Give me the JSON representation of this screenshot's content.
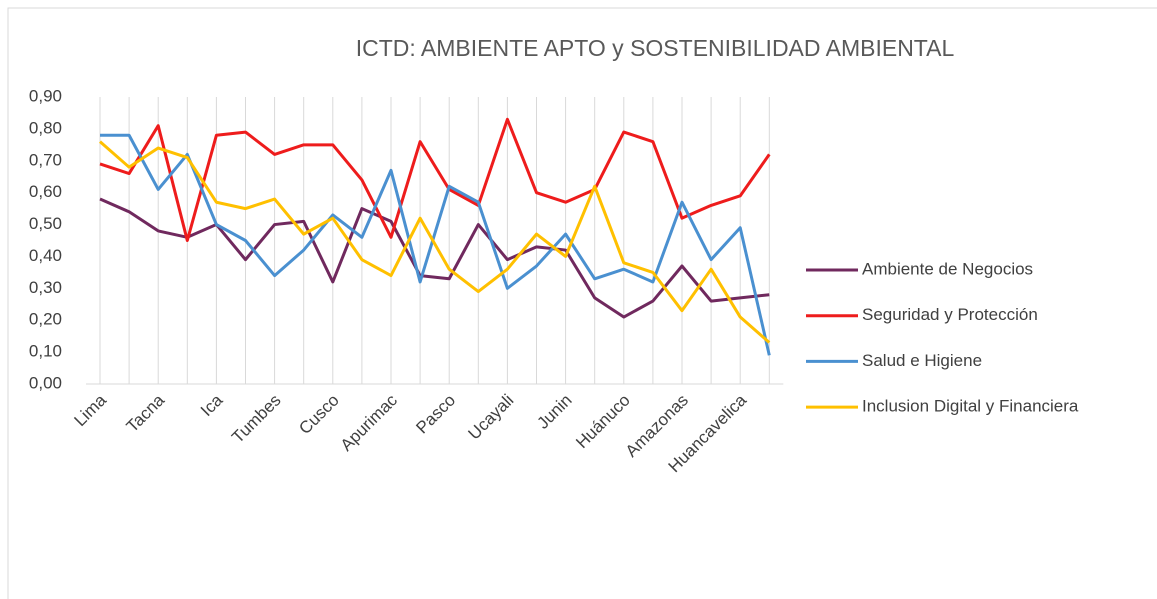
{
  "chart_data": {
    "type": "line",
    "title": "ICTD: AMBIENTE APTO y SOSTENIBILIDAD AMBIENTAL",
    "categories": [
      "Lima",
      null,
      "Tacna",
      null,
      "Ica",
      null,
      "Tumbes",
      null,
      "Cusco",
      null,
      "Apurimac",
      null,
      "Pasco",
      null,
      "Ucayali",
      null,
      "Junin",
      null,
      "Huánuco",
      null,
      "Amazonas",
      null,
      "Huancavelica",
      null
    ],
    "series": [
      {
        "name": "Ambiente de Negocios",
        "color": "#70295e",
        "values": [
          0.58,
          0.54,
          0.48,
          0.46,
          0.5,
          0.39,
          0.5,
          0.51,
          0.32,
          0.55,
          0.51,
          0.34,
          0.33,
          0.5,
          0.39,
          0.43,
          0.42,
          0.27,
          0.21,
          0.26,
          0.37,
          0.26,
          0.27,
          0.28
        ]
      },
      {
        "name": "Seguridad y Protección",
        "color": "#ee1c1c",
        "values": [
          0.69,
          0.66,
          0.81,
          0.45,
          0.78,
          0.79,
          0.72,
          0.75,
          0.75,
          0.64,
          0.46,
          0.76,
          0.61,
          0.56,
          0.83,
          0.6,
          0.57,
          0.61,
          0.79,
          0.76,
          0.52,
          0.56,
          0.59,
          0.72
        ]
      },
      {
        "name": "Salud e Higiene",
        "color": "#4a90d0",
        "values": [
          0.78,
          0.78,
          0.61,
          0.72,
          0.5,
          0.45,
          0.34,
          0.42,
          0.53,
          0.46,
          0.67,
          0.32,
          0.62,
          0.57,
          0.3,
          0.37,
          0.47,
          0.33,
          0.36,
          0.32,
          0.57,
          0.39,
          0.49,
          0.09
        ]
      },
      {
        "name": "Inclusion Digital y Financiera",
        "color": "#ffc000",
        "values": [
          0.76,
          0.68,
          0.74,
          0.71,
          0.57,
          0.55,
          0.58,
          0.47,
          0.52,
          0.39,
          0.34,
          0.52,
          0.36,
          0.29,
          0.36,
          0.47,
          0.4,
          0.62,
          0.38,
          0.35,
          0.23,
          0.36,
          0.21,
          0.13
        ]
      }
    ],
    "ylim": [
      0,
      0.9
    ],
    "yticks": [
      {
        "value": 0,
        "label": "0,00"
      },
      {
        "value": 0.1,
        "label": "0,10"
      },
      {
        "value": 0.2,
        "label": "0,20"
      },
      {
        "value": 0.3,
        "label": "0,30"
      },
      {
        "value": 0.4,
        "label": "0,40"
      },
      {
        "value": 0.5,
        "label": "0,50"
      },
      {
        "value": 0.6,
        "label": "0,60"
      },
      {
        "value": 0.7,
        "label": "0,70"
      },
      {
        "value": 0.8,
        "label": "0,80"
      },
      {
        "value": 0.9,
        "label": "0,90"
      }
    ],
    "vertical_grid": true,
    "legend": "right"
  }
}
